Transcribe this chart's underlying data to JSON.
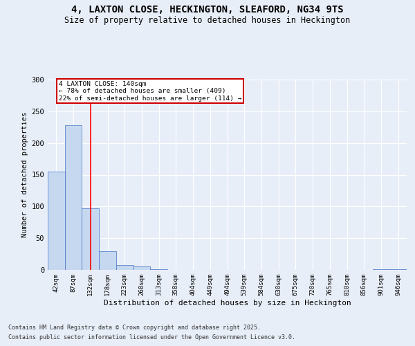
{
  "title_line1": "4, LAXTON CLOSE, HECKINGTON, SLEAFORD, NG34 9TS",
  "title_line2": "Size of property relative to detached houses in Heckington",
  "xlabel": "Distribution of detached houses by size in Heckington",
  "ylabel": "Number of detached properties",
  "categories": [
    "42sqm",
    "87sqm",
    "132sqm",
    "178sqm",
    "223sqm",
    "268sqm",
    "313sqm",
    "358sqm",
    "404sqm",
    "449sqm",
    "494sqm",
    "539sqm",
    "584sqm",
    "630sqm",
    "675sqm",
    "720sqm",
    "765sqm",
    "810sqm",
    "856sqm",
    "901sqm",
    "946sqm"
  ],
  "values": [
    155,
    228,
    97,
    30,
    8,
    6,
    1,
    0,
    0,
    0,
    0,
    0,
    0,
    0,
    0,
    0,
    0,
    0,
    0,
    1,
    1
  ],
  "bar_color": "#c5d8f0",
  "bar_edge_color": "#4472c4",
  "red_line_index": 2,
  "annotation_text": "4 LAXTON CLOSE: 140sqm\n← 78% of detached houses are smaller (409)\n22% of semi-detached houses are larger (114) →",
  "annotation_box_color": "#ffffff",
  "annotation_box_edge_color": "#cc0000",
  "ylim": [
    0,
    300
  ],
  "yticks": [
    0,
    50,
    100,
    150,
    200,
    250,
    300
  ],
  "footer_line1": "Contains HM Land Registry data © Crown copyright and database right 2025.",
  "footer_line2": "Contains public sector information licensed under the Open Government Licence v3.0.",
  "bg_color": "#e8eef8",
  "plot_bg_color": "#e8eef8"
}
